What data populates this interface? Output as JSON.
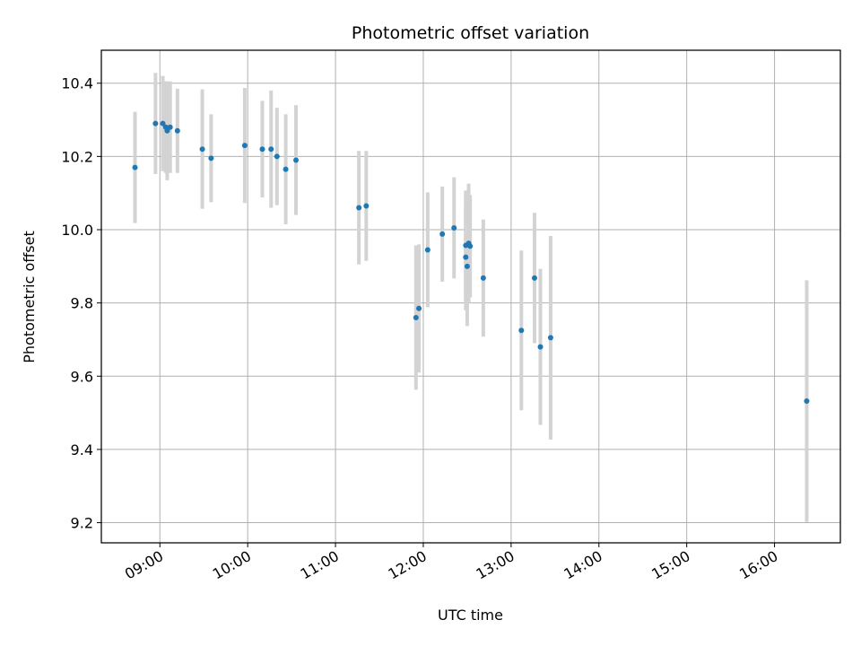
{
  "chart_data": {
    "type": "scatter",
    "title": "Photometric offset variation",
    "xlabel": "UTC time",
    "ylabel": "Photometric offset",
    "xlim": [
      "08:20",
      "16:45"
    ],
    "ylim": [
      9.145,
      10.49
    ],
    "xticks": [
      "09:00",
      "10:00",
      "11:00",
      "12:00",
      "13:00",
      "14:00",
      "15:00",
      "16:00"
    ],
    "yticks": [
      9.2,
      9.4,
      9.6,
      9.8,
      10.0,
      10.2,
      10.4
    ],
    "grid": true,
    "colors": {
      "point": "#1f77b4",
      "errorbar": "#d3d3d3",
      "grid": "#b0b0b0"
    },
    "points": [
      {
        "x": "08:43",
        "y": 10.17,
        "err": 0.152
      },
      {
        "x": "08:57",
        "y": 10.29,
        "err": 0.138
      },
      {
        "x": "09:02",
        "y": 10.29,
        "err": 0.13
      },
      {
        "x": "09:04",
        "y": 10.28,
        "err": 0.125
      },
      {
        "x": "09:05",
        "y": 10.27,
        "err": 0.135
      },
      {
        "x": "09:07",
        "y": 10.28,
        "err": 0.125
      },
      {
        "x": "09:12",
        "y": 10.27,
        "err": 0.115
      },
      {
        "x": "09:29",
        "y": 10.22,
        "err": 0.163
      },
      {
        "x": "09:35",
        "y": 10.195,
        "err": 0.12
      },
      {
        "x": "09:58",
        "y": 10.23,
        "err": 0.157
      },
      {
        "x": "10:10",
        "y": 10.22,
        "err": 0.132
      },
      {
        "x": "10:16",
        "y": 10.22,
        "err": 0.16
      },
      {
        "x": "10:20",
        "y": 10.2,
        "err": 0.133
      },
      {
        "x": "10:26",
        "y": 10.165,
        "err": 0.15
      },
      {
        "x": "10:33",
        "y": 10.19,
        "err": 0.15
      },
      {
        "x": "11:16",
        "y": 10.06,
        "err": 0.155
      },
      {
        "x": "11:21",
        "y": 10.065,
        "err": 0.15
      },
      {
        "x": "11:55",
        "y": 9.76,
        "err": 0.197
      },
      {
        "x": "11:57",
        "y": 9.785,
        "err": 0.175
      },
      {
        "x": "12:03",
        "y": 9.945,
        "err": 0.157
      },
      {
        "x": "12:13",
        "y": 9.988,
        "err": 0.13
      },
      {
        "x": "12:21",
        "y": 10.005,
        "err": 0.138
      },
      {
        "x": "12:29",
        "y": 9.957,
        "err": 0.15
      },
      {
        "x": "12:29",
        "y": 9.925,
        "err": 0.145
      },
      {
        "x": "12:30",
        "y": 9.9,
        "err": 0.163
      },
      {
        "x": "12:31",
        "y": 9.963,
        "err": 0.163
      },
      {
        "x": "12:32",
        "y": 9.955,
        "err": 0.14
      },
      {
        "x": "12:41",
        "y": 9.868,
        "err": 0.16
      },
      {
        "x": "13:07",
        "y": 9.725,
        "err": 0.218
      },
      {
        "x": "13:16",
        "y": 9.868,
        "err": 0.178
      },
      {
        "x": "13:20",
        "y": 9.68,
        "err": 0.213
      },
      {
        "x": "13:27",
        "y": 9.705,
        "err": 0.278
      },
      {
        "x": "16:22",
        "y": 9.532,
        "err": 0.33
      }
    ]
  }
}
